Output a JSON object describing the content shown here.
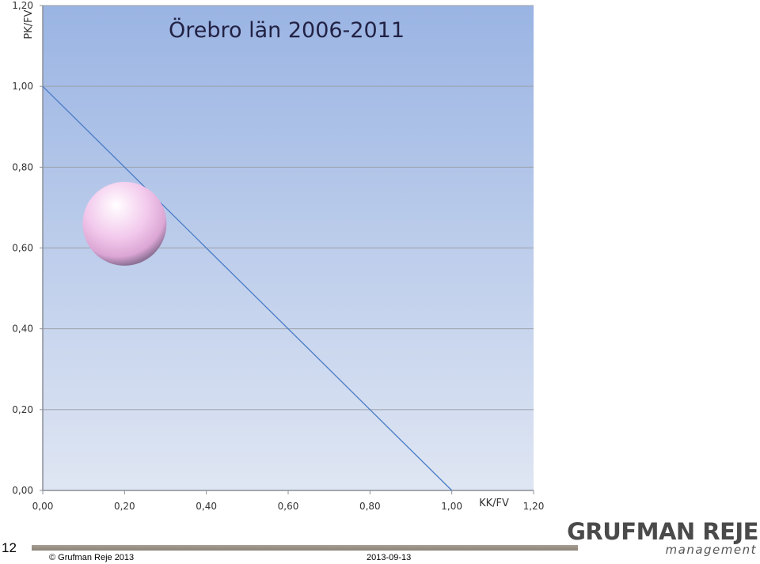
{
  "chart_data": {
    "type": "scatter",
    "title": "Örebro län 2006-2011",
    "xlabel": "KK/FV",
    "ylabel": "PK/FV",
    "xlim": [
      0,
      1.2
    ],
    "ylim": [
      0,
      1.2
    ],
    "x_ticks": [
      "0,00",
      "0,20",
      "0,40",
      "0,60",
      "0,80",
      "1,00",
      "1,20"
    ],
    "y_ticks": [
      "0,00",
      "0,20",
      "0,40",
      "0,60",
      "0,80",
      "1,00",
      "1,20"
    ],
    "grid": "horizontal",
    "reference_line": {
      "from": [
        0,
        1.0
      ],
      "to": [
        1.0,
        0
      ]
    },
    "points": [
      {
        "x": 0.2,
        "y": 0.66,
        "color": "#f2c8ec"
      }
    ],
    "colors": {
      "background_top": "#9ab4e3",
      "background_bottom": "#dfe6f3",
      "reference_line": "#4a7cc7",
      "grid": "#9ca0a8"
    }
  },
  "footer": {
    "slide_number": "12",
    "copyright": "© Grufman Reje 2013",
    "date": "2013-09-13"
  },
  "logo": {
    "main": "GRUFMAN REJE",
    "sub": "management"
  }
}
